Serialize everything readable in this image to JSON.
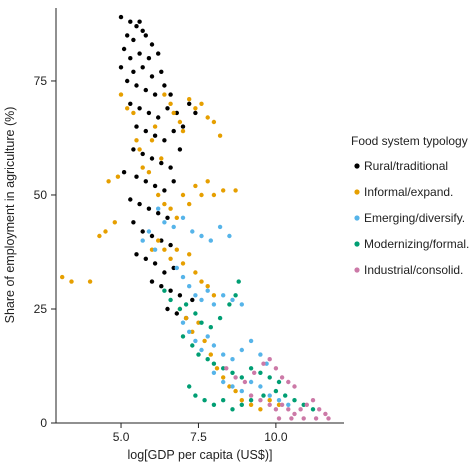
{
  "chart_data": {
    "type": "scatter",
    "title": "",
    "xlabel": "log[GDP per capita (US$)]",
    "ylabel": "Share of employment in agriculture (%)",
    "xlim": [
      2.9,
      12.2
    ],
    "ylim": [
      0,
      91
    ],
    "x_ticks": [
      5.0,
      7.5,
      10.0
    ],
    "x_tick_labels": [
      "5.0",
      "7.5",
      "10.0"
    ],
    "y_ticks": [
      0,
      25,
      50,
      75
    ],
    "y_tick_labels": [
      "0",
      "25",
      "50",
      "75"
    ],
    "grid": false,
    "legend": {
      "title": "Food system typology",
      "position": "right"
    },
    "series": [
      {
        "name": "Rural/traditional",
        "color": "#000000",
        "points": [
          [
            5.0,
            89
          ],
          [
            5.3,
            88
          ],
          [
            5.5,
            87
          ],
          [
            5.6,
            88
          ],
          [
            5.7,
            86
          ],
          [
            5.2,
            85
          ],
          [
            5.4,
            84
          ],
          [
            5.8,
            85
          ],
          [
            6.0,
            83
          ],
          [
            5.1,
            82
          ],
          [
            5.3,
            80
          ],
          [
            5.6,
            81
          ],
          [
            5.9,
            80
          ],
          [
            6.2,
            81
          ],
          [
            5.0,
            78
          ],
          [
            5.4,
            77
          ],
          [
            5.7,
            78
          ],
          [
            6.0,
            76
          ],
          [
            6.3,
            77
          ],
          [
            5.2,
            75
          ],
          [
            5.5,
            74
          ],
          [
            5.8,
            73
          ],
          [
            6.1,
            72
          ],
          [
            6.4,
            74
          ],
          [
            6.6,
            72
          ],
          [
            5.3,
            70
          ],
          [
            5.6,
            69
          ],
          [
            5.9,
            68
          ],
          [
            6.2,
            67
          ],
          [
            6.5,
            69
          ],
          [
            6.8,
            68
          ],
          [
            5.5,
            65
          ],
          [
            5.8,
            64
          ],
          [
            6.1,
            63
          ],
          [
            6.4,
            62
          ],
          [
            6.7,
            64
          ],
          [
            7.0,
            65
          ],
          [
            7.2,
            70
          ],
          [
            7.4,
            68
          ],
          [
            5.4,
            60
          ],
          [
            5.7,
            59
          ],
          [
            6.0,
            58
          ],
          [
            6.3,
            57
          ],
          [
            6.6,
            56
          ],
          [
            6.9,
            60
          ],
          [
            5.1,
            55
          ],
          [
            5.5,
            54
          ],
          [
            5.8,
            53
          ],
          [
            6.1,
            52
          ],
          [
            6.4,
            51
          ],
          [
            6.7,
            53
          ],
          [
            5.3,
            49
          ],
          [
            5.6,
            48
          ],
          [
            5.9,
            47
          ],
          [
            6.2,
            46
          ],
          [
            6.5,
            45
          ],
          [
            5.4,
            44
          ],
          [
            5.7,
            42
          ],
          [
            6.0,
            41
          ],
          [
            6.3,
            40
          ],
          [
            6.6,
            39
          ],
          [
            5.5,
            37
          ],
          [
            5.8,
            36
          ],
          [
            6.1,
            35
          ],
          [
            6.4,
            33
          ],
          [
            6.7,
            34
          ],
          [
            6.0,
            31
          ],
          [
            6.3,
            30
          ],
          [
            6.6,
            29
          ],
          [
            6.9,
            28
          ],
          [
            6.5,
            25
          ],
          [
            6.8,
            24
          ],
          [
            7.1,
            23
          ],
          [
            7.3,
            27
          ]
        ]
      },
      {
        "name": "Informal/expand.",
        "color": "#E69F00",
        "points": [
          [
            3.1,
            32
          ],
          [
            3.4,
            31
          ],
          [
            4.0,
            31
          ],
          [
            4.3,
            41
          ],
          [
            4.5,
            42
          ],
          [
            4.6,
            53
          ],
          [
            4.8,
            44
          ],
          [
            4.9,
            54
          ],
          [
            5.0,
            72
          ],
          [
            5.2,
            69
          ],
          [
            5.4,
            68
          ],
          [
            5.5,
            62
          ],
          [
            5.6,
            60
          ],
          [
            5.7,
            56
          ],
          [
            5.9,
            55
          ],
          [
            6.0,
            62
          ],
          [
            6.1,
            65
          ],
          [
            6.3,
            58
          ],
          [
            6.4,
            72
          ],
          [
            6.6,
            70
          ],
          [
            6.7,
            68
          ],
          [
            6.9,
            66
          ],
          [
            7.0,
            64
          ],
          [
            7.2,
            71
          ],
          [
            7.4,
            69
          ],
          [
            7.6,
            70
          ],
          [
            7.8,
            67
          ],
          [
            8.0,
            66
          ],
          [
            8.2,
            63
          ],
          [
            6.2,
            50
          ],
          [
            6.4,
            48
          ],
          [
            6.6,
            47
          ],
          [
            6.8,
            45
          ],
          [
            7.0,
            50
          ],
          [
            7.2,
            48
          ],
          [
            7.4,
            52
          ],
          [
            7.6,
            50
          ],
          [
            7.8,
            53
          ],
          [
            8.0,
            50
          ],
          [
            8.3,
            51
          ],
          [
            8.7,
            51
          ],
          [
            6.0,
            38
          ],
          [
            6.2,
            40
          ],
          [
            6.4,
            38
          ],
          [
            6.6,
            36
          ],
          [
            6.8,
            38
          ],
          [
            7.0,
            35
          ],
          [
            7.2,
            37
          ],
          [
            7.4,
            33
          ],
          [
            7.6,
            31
          ],
          [
            7.8,
            30
          ],
          [
            8.0,
            28
          ],
          [
            6.9,
            25
          ],
          [
            7.1,
            23
          ],
          [
            7.3,
            20
          ],
          [
            7.5,
            22
          ],
          [
            7.7,
            18
          ],
          [
            7.9,
            15
          ],
          [
            8.1,
            12
          ],
          [
            8.3,
            10
          ],
          [
            8.5,
            8
          ],
          [
            8.7,
            7
          ],
          [
            8.9,
            5
          ],
          [
            9.2,
            4
          ],
          [
            9.5,
            3
          ],
          [
            9.8,
            5
          ],
          [
            10.1,
            4
          ]
        ]
      },
      {
        "name": "Emerging/diversify.",
        "color": "#56B4E9",
        "points": [
          [
            5.7,
            40
          ],
          [
            5.9,
            42
          ],
          [
            6.1,
            38
          ],
          [
            6.2,
            47
          ],
          [
            6.4,
            44
          ],
          [
            6.7,
            43
          ],
          [
            7.0,
            45
          ],
          [
            7.3,
            42
          ],
          [
            7.6,
            41
          ],
          [
            7.9,
            40
          ],
          [
            8.2,
            43
          ],
          [
            8.5,
            41
          ],
          [
            6.8,
            34
          ],
          [
            7.0,
            32
          ],
          [
            7.2,
            30
          ],
          [
            7.4,
            28
          ],
          [
            7.6,
            27
          ],
          [
            7.8,
            29
          ],
          [
            8.0,
            26
          ],
          [
            8.3,
            28
          ],
          [
            8.6,
            27
          ],
          [
            8.9,
            26
          ],
          [
            7.0,
            22
          ],
          [
            7.2,
            20
          ],
          [
            7.4,
            18
          ],
          [
            7.6,
            16
          ],
          [
            7.8,
            19
          ],
          [
            8.0,
            17
          ],
          [
            8.3,
            15
          ],
          [
            8.6,
            14
          ],
          [
            8.9,
            16
          ],
          [
            9.2,
            18
          ],
          [
            9.5,
            15
          ],
          [
            9.7,
            13
          ],
          [
            8.0,
            11
          ],
          [
            8.3,
            9
          ],
          [
            8.6,
            8
          ],
          [
            8.9,
            7
          ],
          [
            9.2,
            9
          ],
          [
            9.5,
            8
          ],
          [
            9.8,
            6
          ],
          [
            10.1,
            5
          ],
          [
            10.4,
            4
          ]
        ]
      },
      {
        "name": "Modernizing/formal.",
        "color": "#009E73",
        "points": [
          [
            6.4,
            29
          ],
          [
            6.6,
            27
          ],
          [
            6.9,
            25
          ],
          [
            7.1,
            26
          ],
          [
            7.4,
            24
          ],
          [
            7.6,
            22
          ],
          [
            7.9,
            21
          ],
          [
            8.2,
            23
          ],
          [
            8.5,
            26
          ],
          [
            8.7,
            28
          ],
          [
            8.8,
            31
          ],
          [
            7.0,
            19
          ],
          [
            7.3,
            17
          ],
          [
            7.5,
            15
          ],
          [
            7.8,
            14
          ],
          [
            8.0,
            13
          ],
          [
            8.3,
            12
          ],
          [
            8.6,
            11
          ],
          [
            8.9,
            10
          ],
          [
            9.2,
            12
          ],
          [
            9.5,
            11
          ],
          [
            9.8,
            10
          ],
          [
            10.1,
            9
          ],
          [
            7.2,
            8
          ],
          [
            7.4,
            6
          ],
          [
            7.7,
            5
          ],
          [
            8.0,
            4
          ],
          [
            8.3,
            5
          ],
          [
            8.6,
            3
          ],
          [
            8.9,
            4
          ],
          [
            9.2,
            5
          ],
          [
            9.6,
            6
          ],
          [
            10.0,
            7
          ],
          [
            10.3,
            6
          ],
          [
            10.6,
            5
          ],
          [
            10.9,
            4
          ],
          [
            11.2,
            3
          ]
        ]
      },
      {
        "name": "Industrial/consolid.",
        "color": "#CC79A7",
        "points": [
          [
            8.4,
            12
          ],
          [
            8.7,
            10
          ],
          [
            9.0,
            9
          ],
          [
            9.3,
            11
          ],
          [
            9.6,
            13
          ],
          [
            9.8,
            14
          ],
          [
            10.0,
            12
          ],
          [
            10.2,
            10
          ],
          [
            10.4,
            9
          ],
          [
            10.6,
            8
          ],
          [
            9.2,
            6
          ],
          [
            9.5,
            5
          ],
          [
            9.8,
            4
          ],
          [
            10.0,
            3
          ],
          [
            10.2,
            4
          ],
          [
            10.4,
            3
          ],
          [
            10.6,
            2
          ],
          [
            10.8,
            3
          ],
          [
            11.0,
            4
          ],
          [
            11.2,
            5
          ],
          [
            11.4,
            3
          ],
          [
            11.6,
            2
          ],
          [
            10.1,
            1
          ],
          [
            10.5,
            1
          ],
          [
            10.9,
            1
          ],
          [
            11.3,
            1
          ],
          [
            11.7,
            1
          ]
        ]
      }
    ]
  }
}
